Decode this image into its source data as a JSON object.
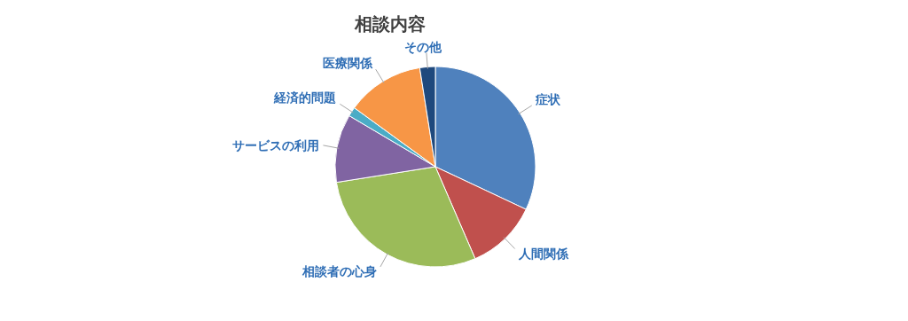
{
  "chart_data": {
    "type": "pie",
    "title": "相談内容",
    "categories": [
      "症状",
      "人間関係",
      "相談者の心身",
      "サービスの利用",
      "経済的問題",
      "医療関係",
      "その他"
    ],
    "values": [
      32,
      11.5,
      29,
      11,
      1.5,
      12.5,
      2.5
    ],
    "colors": [
      "#4f81bd",
      "#c0504d",
      "#9bbb59",
      "#8064a2",
      "#4bacc6",
      "#f79646",
      "#1f497d"
    ],
    "legend": false
  }
}
